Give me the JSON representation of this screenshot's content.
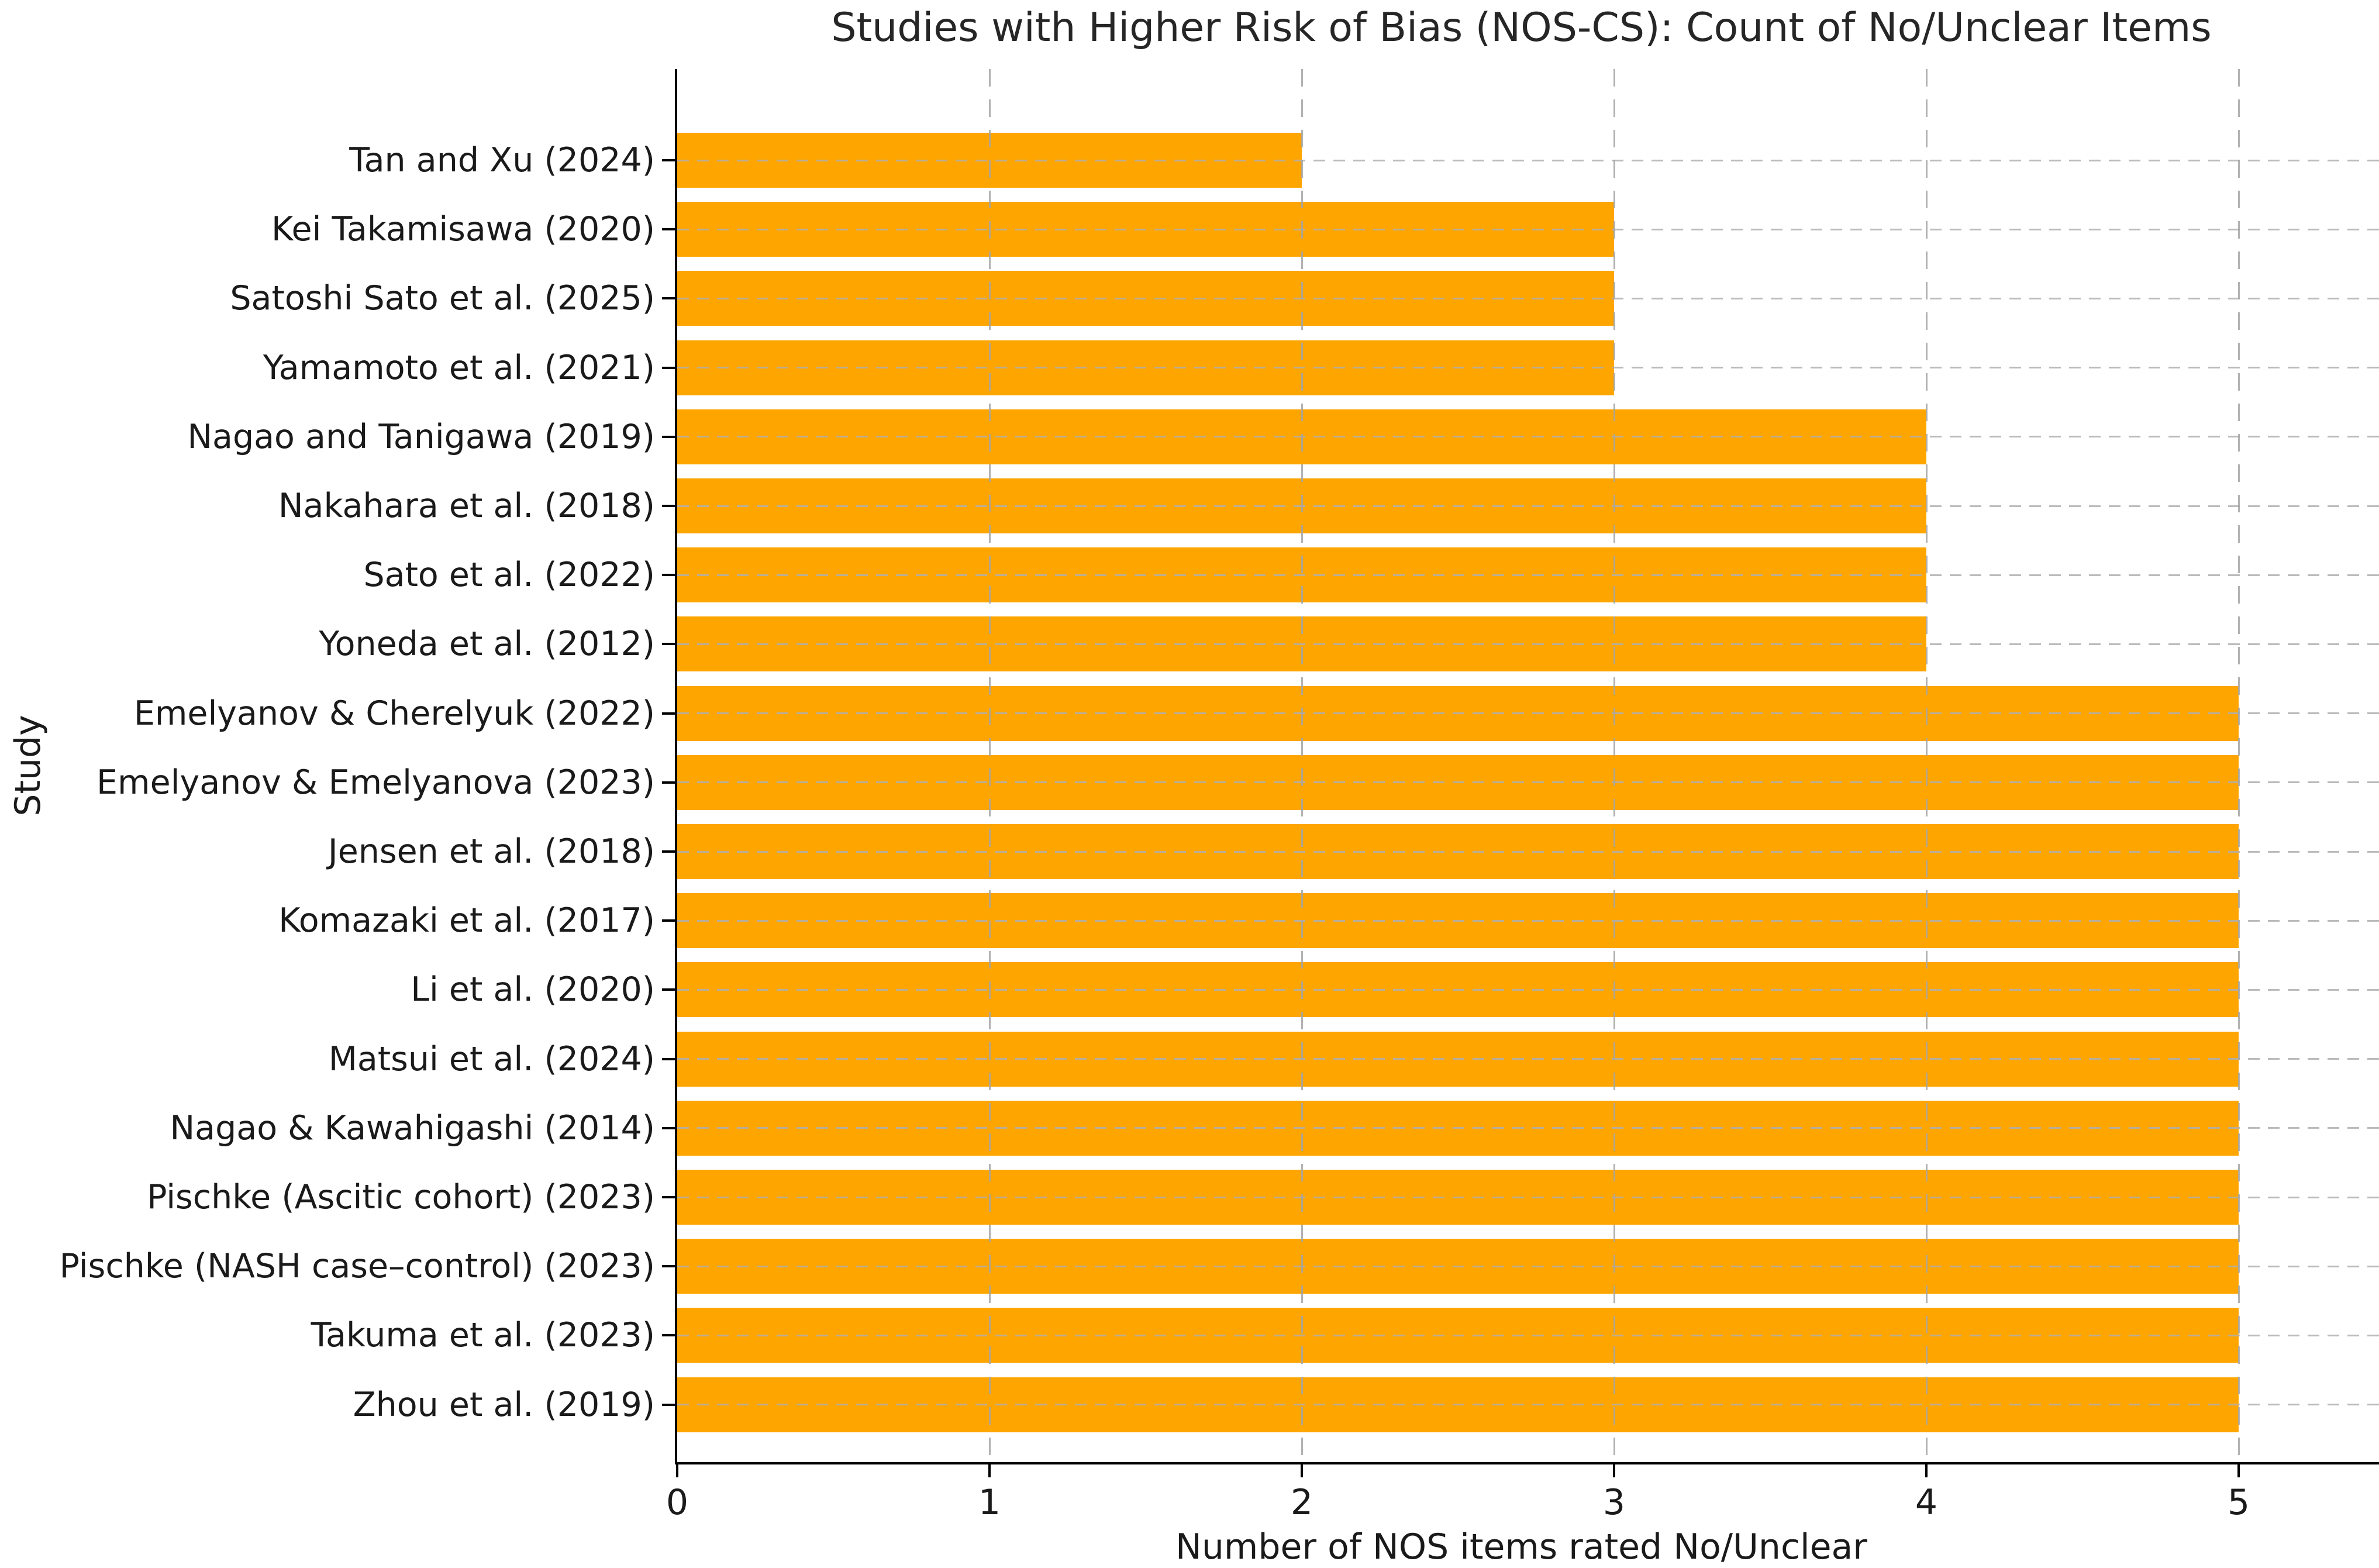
{
  "chart_data": {
    "type": "bar",
    "orientation": "horizontal",
    "title": "Studies with Higher Risk of Bias (NOS-CS): Count of No/Unclear Items",
    "xlabel": "Number of NOS items rated No/Unclear",
    "ylabel": "Study",
    "bar_color": "#FFA500",
    "grid": true,
    "grid_style": "dashed",
    "xlim": [
      0,
      5.45
    ],
    "xticks": [
      0,
      1,
      2,
      3,
      4,
      5
    ],
    "legend": "none",
    "categories": [
      "Tan and Xu (2024)",
      "Kei Takamisawa (2020)",
      "Satoshi Sato et al. (2025)",
      "Yamamoto et al. (2021)",
      "Nagao and Tanigawa (2019)",
      "Nakahara et al. (2018)",
      "Sato et al. (2022)",
      "Yoneda et al. (2012)",
      "Emelyanov & Cherelyuk (2022)",
      "Emelyanov & Emelyanova (2023)",
      "Jensen et al. (2018)",
      "Komazaki et al. (2017)",
      "Li et al. (2020)",
      "Matsui et al. (2024)",
      "Nagao & Kawahigashi (2014)",
      "Pischke (Ascitic cohort) (2023)",
      "Pischke (NASH case–control) (2023)",
      "Takuma et al. (2023)",
      "Zhou et al. (2019)"
    ],
    "values": [
      2,
      3,
      3,
      3,
      4,
      4,
      4,
      4,
      5,
      5,
      5,
      5,
      5,
      5,
      5,
      5,
      5,
      5,
      5
    ]
  }
}
